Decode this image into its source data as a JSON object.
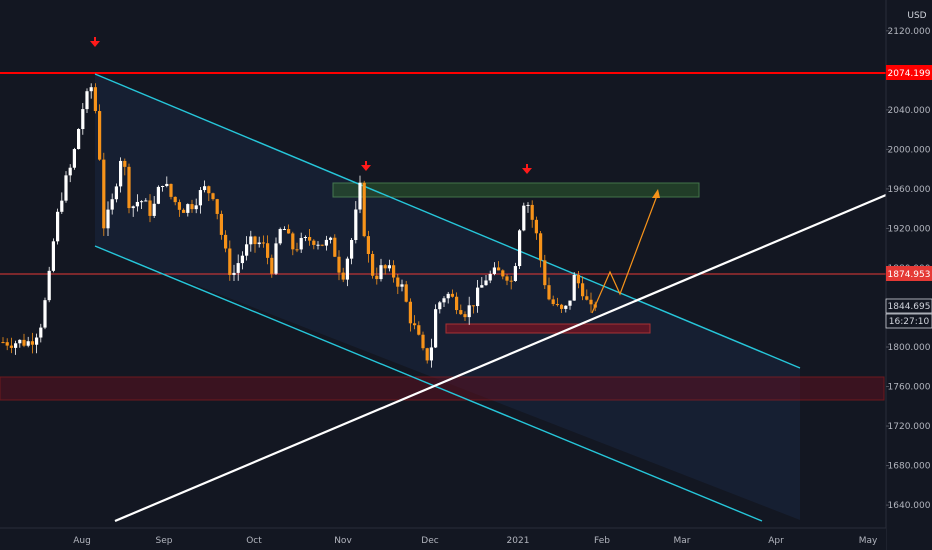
{
  "chart_data": {
    "type": "candlestick",
    "currency": "USD",
    "y_axis_ticks": [
      "2120.000",
      "2080.000",
      "2040.000",
      "2000.000",
      "1960.000",
      "1920.000",
      "1880.000",
      "1840.000",
      "1800.000",
      "1760.000",
      "1720.000",
      "1680.000",
      "1640.000"
    ],
    "x_axis_ticks": [
      "Aug",
      "Sep",
      "Oct",
      "Nov",
      "Dec",
      "2021",
      "Feb",
      "Mar",
      "Apr",
      "May"
    ],
    "ylim": [
      1632,
      2136
    ],
    "price_labels": {
      "resistance": "2074.199",
      "mid_level": "1874.953",
      "last_price": "1844.695",
      "countdown": "16:27:10"
    },
    "series_description": "XAUUSD-like gold daily candles, Jul 2020 – Feb 2021",
    "colors": {
      "background": "#131722",
      "up_candle": "#ffffff",
      "down_candle": "#f7931a",
      "resistance_line": "#ff0000",
      "channel_line": "#26c6da",
      "trend_line": "#ffffff",
      "target_box": "#2e7d32",
      "support_zone": "#8b1a2a",
      "arrow": "#ff2020",
      "projection": "#f7931a"
    }
  }
}
